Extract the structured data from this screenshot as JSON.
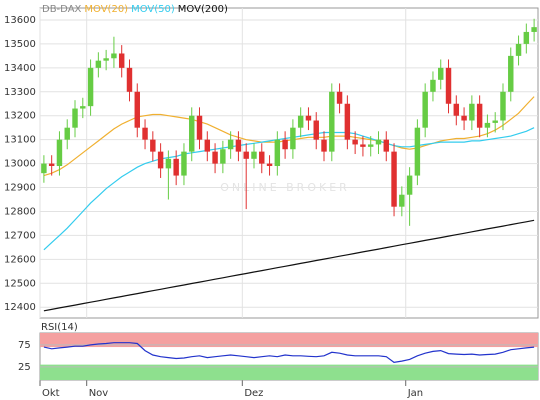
{
  "chart_data": [
    {
      "type": "candlestick",
      "name": "DB-DAX",
      "watermark": "ONLINE BROKER",
      "up_color": "#66cc44",
      "down_color": "#e03030",
      "categories": [
        "Okt",
        null,
        null,
        null,
        null,
        null,
        "Nov",
        null,
        null,
        null,
        null,
        null,
        null,
        null,
        null,
        null,
        null,
        null,
        null,
        null,
        null,
        null,
        null,
        null,
        null,
        null,
        "Dez",
        null,
        null,
        null,
        null,
        null,
        null,
        null,
        null,
        null,
        null,
        null,
        null,
        null,
        null,
        null,
        null,
        null,
        null,
        null,
        null,
        "Jan",
        null,
        null,
        null,
        null,
        null,
        null,
        null,
        null,
        null,
        null,
        null,
        null,
        null,
        null,
        null,
        null
      ],
      "open": [
        12960,
        13000,
        12990,
        13100,
        13150,
        13230,
        13240,
        13400,
        13430,
        13440,
        13460,
        13400,
        13300,
        13150,
        13100,
        13050,
        12980,
        13020,
        12950,
        13050,
        13200,
        13100,
        13050,
        13000,
        13060,
        13100,
        13050,
        13020,
        13050,
        13000,
        12990,
        13100,
        13060,
        13150,
        13200,
        13180,
        13100,
        13050,
        13300,
        13250,
        13100,
        13080,
        13070,
        13080,
        13100,
        13050,
        12820,
        12870,
        12950,
        13150,
        13300,
        13350,
        13400,
        13250,
        13200,
        13180,
        13250,
        13150,
        13170,
        13180,
        13300,
        13450,
        13500,
        13550
      ],
      "high": [
        13035,
        13035,
        13135,
        13185,
        13265,
        13275,
        13435,
        13465,
        13475,
        13530,
        13495,
        13435,
        13335,
        13185,
        13135,
        13085,
        13055,
        13055,
        13085,
        13235,
        13235,
        13135,
        13085,
        13095,
        13135,
        13135,
        13085,
        13085,
        13085,
        13035,
        13135,
        13135,
        13185,
        13235,
        13235,
        13215,
        13135,
        13335,
        13335,
        13285,
        13135,
        13115,
        13115,
        13135,
        13135,
        13085,
        12905,
        12985,
        13185,
        13335,
        13385,
        13435,
        13435,
        13285,
        13235,
        13285,
        13285,
        13205,
        13215,
        13335,
        13485,
        13535,
        13585,
        13605
      ],
      "low": [
        12920,
        12950,
        12950,
        13060,
        13110,
        13190,
        13200,
        13360,
        13390,
        13400,
        13360,
        13260,
        13110,
        13060,
        13010,
        12940,
        12850,
        12910,
        12910,
        13010,
        13060,
        13010,
        12960,
        12960,
        13020,
        13010,
        12810,
        12980,
        12960,
        12950,
        12950,
        13020,
        13020,
        13110,
        13140,
        13060,
        13010,
        13010,
        13210,
        13060,
        13040,
        13030,
        13030,
        13040,
        13010,
        12780,
        12780,
        12740,
        12910,
        13110,
        13260,
        13310,
        13210,
        13160,
        13140,
        13140,
        13110,
        13110,
        13130,
        13140,
        13260,
        13410,
        13460,
        13510
      ],
      "close": [
        13000,
        12990,
        13100,
        13150,
        13230,
        13240,
        13400,
        13430,
        13440,
        13460,
        13400,
        13300,
        13150,
        13100,
        13050,
        12980,
        13020,
        12950,
        13050,
        13200,
        13100,
        13050,
        13000,
        13060,
        13100,
        13050,
        13020,
        13050,
        13000,
        12990,
        13100,
        13060,
        13150,
        13200,
        13180,
        13100,
        13050,
        13300,
        13250,
        13100,
        13080,
        13070,
        13080,
        13100,
        13050,
        12820,
        12870,
        12950,
        13150,
        13300,
        13350,
        13400,
        13250,
        13200,
        13180,
        13250,
        13150,
        13170,
        13180,
        13300,
        13450,
        13500,
        13550,
        13570
      ],
      "series": [
        {
          "name": "MOV(20)",
          "color": "#f0b030",
          "values": [
            12950,
            12960,
            12975,
            12995,
            13020,
            13045,
            13070,
            13095,
            13120,
            13145,
            13165,
            13180,
            13195,
            13200,
            13205,
            13205,
            13200,
            13195,
            13190,
            13185,
            13175,
            13165,
            13150,
            13135,
            13120,
            13110,
            13100,
            13095,
            13090,
            13090,
            13090,
            13095,
            13100,
            13105,
            13110,
            13110,
            13110,
            13115,
            13115,
            13115,
            13110,
            13105,
            13100,
            13095,
            13085,
            13075,
            13065,
            13060,
            13065,
            13075,
            13085,
            13095,
            13100,
            13105,
            13105,
            13110,
            13115,
            13125,
            13140,
            13160,
            13185,
            13210,
            13245,
            13280
          ]
        },
        {
          "name": "MOV(50)",
          "color": "#33ccee",
          "values": [
            12640,
            12670,
            12700,
            12730,
            12765,
            12800,
            12835,
            12865,
            12895,
            12920,
            12945,
            12965,
            12985,
            13000,
            13010,
            13020,
            13025,
            13030,
            13040,
            13045,
            13050,
            13055,
            13060,
            13065,
            13070,
            13075,
            13080,
            13085,
            13090,
            13095,
            13100,
            13105,
            13110,
            13115,
            13120,
            13125,
            13130,
            13130,
            13130,
            13130,
            13125,
            13115,
            13105,
            13095,
            13085,
            13075,
            13070,
            13070,
            13075,
            13080,
            13085,
            13090,
            13090,
            13090,
            13090,
            13095,
            13095,
            13100,
            13105,
            13110,
            13115,
            13125,
            13135,
            13150
          ]
        },
        {
          "name": "MOV(200)",
          "color": "#111111",
          "values": [
            12385,
            12391,
            12397,
            12403,
            12409,
            12415,
            12421,
            12427,
            12433,
            12439,
            12445,
            12451,
            12457,
            12463,
            12469,
            12475,
            12481,
            12487,
            12493,
            12499,
            12505,
            12511,
            12517,
            12523,
            12529,
            12535,
            12541,
            12547,
            12553,
            12559,
            12565,
            12571,
            12577,
            12583,
            12589,
            12595,
            12601,
            12607,
            12613,
            12619,
            12625,
            12631,
            12637,
            12643,
            12649,
            12655,
            12661,
            12667,
            12673,
            12679,
            12685,
            12691,
            12697,
            12703,
            12709,
            12715,
            12721,
            12727,
            12733,
            12739,
            12745,
            12751,
            12757,
            12763
          ]
        }
      ],
      "ylim": [
        12355,
        13650
      ],
      "yticks": [
        12400,
        12500,
        12600,
        12700,
        12800,
        12900,
        13000,
        13100,
        13200,
        13300,
        13400,
        13500,
        13600
      ],
      "grid": true
    },
    {
      "type": "line",
      "title": "RSI(14)",
      "color": "#2233cc",
      "values": [
        70,
        66,
        68,
        70,
        72,
        72,
        75,
        77,
        78,
        80,
        80,
        80,
        78,
        62,
        52,
        48,
        46,
        44,
        45,
        48,
        50,
        46,
        48,
        50,
        52,
        50,
        48,
        46,
        48,
        50,
        48,
        52,
        50,
        50,
        49,
        48,
        50,
        58,
        56,
        52,
        50,
        50,
        50,
        50,
        48,
        35,
        38,
        42,
        50,
        56,
        60,
        62,
        55,
        54,
        53,
        54,
        52,
        53,
        54,
        58,
        64,
        66,
        68,
        70
      ],
      "ylim": [
        -5,
        102
      ],
      "yticks": [
        25,
        75
      ],
      "overbought": 70,
      "oversold": 30,
      "overbought_color": "#f4a0a0",
      "oversold_color": "#8ee08e"
    }
  ]
}
